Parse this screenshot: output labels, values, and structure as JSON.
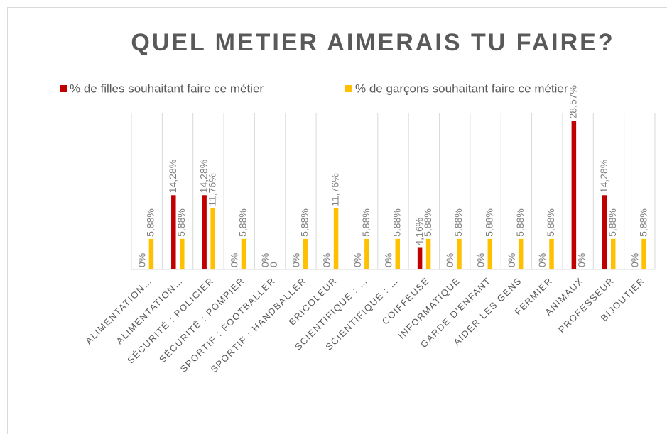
{
  "chart_data": {
    "type": "bar",
    "title": "QUEL METIER AIMERAIS TU FAIRE?",
    "categories": [
      "ALIMENTATION…",
      "ALIMENTATION…",
      "SÉCURITÉ : POLICIER",
      "SÉCURITÉ : POMPIER",
      "SPORTIF : FOOTBALLER",
      "SPORTIF : HANDBALLER",
      "BRICOLEUR",
      "SCIENTIFIQUE : …",
      "SCIENTIFIQUE : …",
      "COIFFEUSE",
      "INFORMATIQUE",
      "GARDE D'ENFANT",
      "AIDER LES GENS",
      "FERMIER",
      "ANIMAUX",
      "PROFESSEUR",
      "BIJOUTIER"
    ],
    "series": [
      {
        "name": "% de filles souhaitant faire ce métier",
        "color": "#c00000",
        "values": [
          0,
          14.28,
          14.28,
          0,
          0,
          0,
          0,
          0,
          0,
          4.16,
          0,
          0,
          0,
          0,
          28.57,
          14.28,
          0
        ],
        "value_labels": [
          "0%",
          "14,28%",
          "14,28%",
          "0%",
          "0%",
          "0%",
          "0%",
          "0%",
          "0%",
          "4,16%",
          "0%",
          "0%",
          "0%",
          "0%",
          "28,57%",
          "14,28%",
          "0%"
        ]
      },
      {
        "name": "% de garçons souhaitant faire ce métier",
        "color": "#ffc000",
        "values": [
          5.88,
          5.88,
          11.76,
          5.88,
          0,
          5.88,
          11.76,
          5.88,
          5.88,
          5.88,
          5.88,
          5.88,
          5.88,
          5.88,
          0,
          5.88,
          5.88
        ],
        "value_labels": [
          "5,88%",
          "5,88%",
          "11,76%",
          "5,88%",
          "0",
          "5,88%",
          "11,76%",
          "5,88%",
          "5,88%",
          "5,88%",
          "5,88%",
          "5,88%",
          "5,88%",
          "5,88%",
          "0%",
          "5,88%",
          "5,88%"
        ]
      }
    ],
    "ylim": [
      0,
      30
    ],
    "legend": "top"
  }
}
